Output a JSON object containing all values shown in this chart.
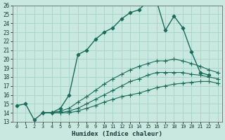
{
  "xlabel": "Humidex (Indice chaleur)",
  "xlim": [
    -0.5,
    23.5
  ],
  "ylim": [
    13,
    26
  ],
  "bg_color": "#c8e8e0",
  "grid_color": "#aad4cc",
  "line_color": "#1a6b5a",
  "yticks": [
    13,
    14,
    15,
    16,
    17,
    18,
    19,
    20,
    21,
    22,
    23,
    24,
    25,
    26
  ],
  "xticks": [
    0,
    1,
    2,
    3,
    4,
    5,
    6,
    7,
    8,
    9,
    10,
    11,
    12,
    13,
    14,
    15,
    16,
    17,
    18,
    19,
    20,
    21,
    22,
    23
  ],
  "lines_data": [
    {
      "x": [
        0,
        1,
        2,
        3,
        4,
        5,
        6,
        7,
        8,
        9,
        10,
        11,
        12,
        13,
        14,
        15,
        16,
        17,
        18,
        19,
        20,
        21,
        22
      ],
      "y": [
        14.8,
        15.0,
        13.2,
        14.0,
        14.0,
        14.5,
        16.0,
        20.5,
        21.0,
        22.2,
        23.0,
        23.5,
        24.5,
        25.2,
        25.5,
        26.5,
        26.5,
        23.2,
        24.8,
        23.5,
        20.8,
        18.5,
        18.2
      ]
    },
    {
      "x": [
        3,
        4,
        5,
        6,
        7,
        8,
        9,
        10,
        11,
        12,
        13,
        14,
        15,
        16,
        17,
        18,
        19,
        20,
        21,
        22,
        23
      ],
      "y": [
        14.0,
        14.0,
        14.2,
        14.5,
        15.2,
        15.8,
        16.5,
        17.2,
        17.8,
        18.3,
        18.8,
        19.2,
        19.5,
        19.8,
        19.8,
        20.0,
        19.8,
        19.5,
        19.2,
        18.8,
        18.5
      ]
    },
    {
      "x": [
        3,
        4,
        5,
        6,
        7,
        8,
        9,
        10,
        11,
        12,
        13,
        14,
        15,
        16,
        17,
        18,
        19,
        20,
        21,
        22,
        23
      ],
      "y": [
        14.0,
        14.0,
        14.0,
        14.2,
        14.5,
        15.0,
        15.5,
        16.0,
        16.5,
        17.0,
        17.5,
        17.8,
        18.2,
        18.5,
        18.5,
        18.5,
        18.5,
        18.3,
        18.2,
        18.0,
        17.8
      ]
    },
    {
      "x": [
        3,
        4,
        5,
        6,
        7,
        8,
        9,
        10,
        11,
        12,
        13,
        14,
        15,
        16,
        17,
        18,
        19,
        20,
        21,
        22,
        23
      ],
      "y": [
        14.0,
        14.0,
        14.0,
        14.0,
        14.2,
        14.5,
        14.8,
        15.2,
        15.5,
        15.8,
        16.0,
        16.2,
        16.5,
        16.8,
        17.0,
        17.2,
        17.3,
        17.4,
        17.5,
        17.5,
        17.3
      ]
    }
  ]
}
